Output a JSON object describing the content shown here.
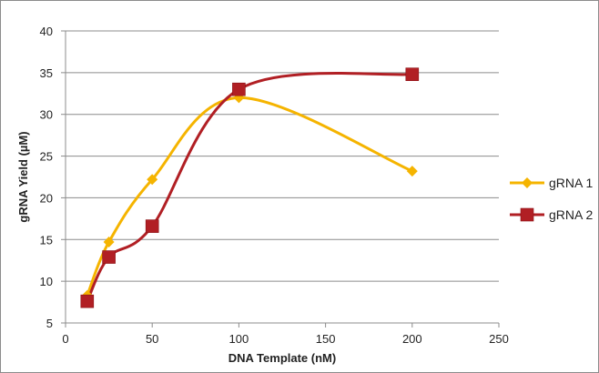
{
  "chart_data": {
    "type": "line",
    "xlabel": "DNA Template (nM)",
    "ylabel": "gRNA Yield (µM)",
    "xlim": [
      0,
      250
    ],
    "ylim": [
      5,
      40
    ],
    "x_ticks": [
      0,
      50,
      100,
      150,
      200,
      250
    ],
    "y_ticks": [
      5,
      10,
      15,
      20,
      25,
      30,
      35,
      40
    ],
    "grid": "horizontal",
    "smooth": true,
    "legend_position": "right",
    "series": [
      {
        "name": "gRNA 1",
        "color": "#f5b400",
        "marker": "diamond",
        "x": [
          12.5,
          25,
          50,
          100,
          200
        ],
        "y": [
          8.3,
          14.7,
          22.2,
          32.0,
          23.2
        ]
      },
      {
        "name": "gRNA 2",
        "color": "#b11f24",
        "marker": "square",
        "x": [
          12.5,
          25,
          50,
          100,
          200
        ],
        "y": [
          7.6,
          12.9,
          16.6,
          33.0,
          34.8
        ]
      }
    ]
  }
}
